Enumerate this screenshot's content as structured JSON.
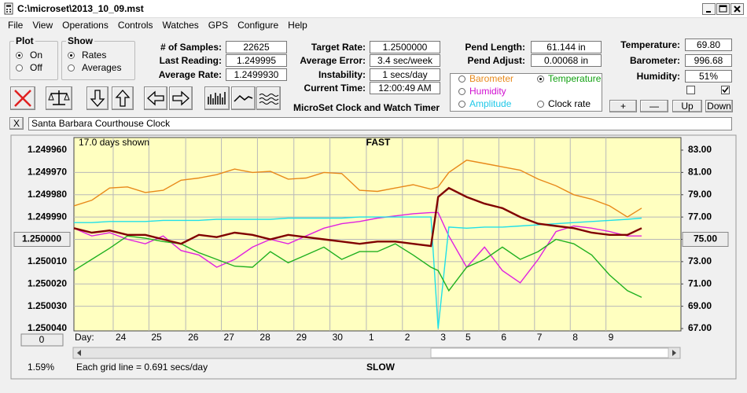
{
  "window": {
    "title": "C:\\microset\\2013_10_09.mst"
  },
  "menu": [
    "File",
    "View",
    "Operations",
    "Controls",
    "Watches",
    "GPS",
    "Configure",
    "Help"
  ],
  "plot": {
    "label": "Plot",
    "options": [
      "On",
      "Off"
    ],
    "selected": 0
  },
  "show": {
    "label": "Show",
    "options": [
      "Rates",
      "Averages"
    ],
    "selected": 0
  },
  "field_groups": [
    [
      {
        "label": "# of Samples:",
        "value": "22625"
      },
      {
        "label": "Last Reading:",
        "value": "1.249995"
      },
      {
        "label": "Average Rate:",
        "value": "1.2499930"
      }
    ],
    [
      {
        "label": "Target Rate:",
        "value": "1.2500000"
      },
      {
        "label": "Average Error:",
        "value": "3.4 sec/week"
      },
      {
        "label": "Instability:",
        "value": "1 secs/day"
      },
      {
        "label": "Current Time:",
        "value": "12:00:49 AM"
      }
    ],
    [
      {
        "label": "Pend Length:",
        "value": "61.144 in"
      },
      {
        "label": "Pend Adjust:",
        "value": "0.00068 in"
      }
    ],
    [
      {
        "label": "Temperature:",
        "value": "69.80"
      },
      {
        "label": "Barometer:",
        "value": "996.68"
      },
      {
        "label": "Humidity:",
        "value": "51%"
      }
    ]
  ],
  "checkboxes": [
    false,
    true
  ],
  "buttons": [
    "+",
    "—",
    "Up",
    "Down"
  ],
  "app_name": "MicroSet Clock and Watch Timer",
  "watch": {
    "close": "X",
    "name": "Santa Barbara Courthouse Clock"
  },
  "chart_data": {
    "type": "line",
    "days_shown": "17.0 days shown",
    "top_label": "FAST",
    "bottom_label": "SLOW",
    "x_label": "Day:",
    "scroll_value": "0",
    "status": "1.59%",
    "footnote": "Each grid line = 0.691 secs/day",
    "grid": true,
    "xlim": [
      0,
      17
    ],
    "xticks": [
      {
        "value": 1.1,
        "label": "24"
      },
      {
        "value": 2.1,
        "label": "25"
      },
      {
        "value": 3.13,
        "label": "26"
      },
      {
        "value": 4.13,
        "label": "27"
      },
      {
        "value": 5.14,
        "label": "28"
      },
      {
        "value": 6.16,
        "label": "29"
      },
      {
        "value": 7.17,
        "label": "30"
      },
      {
        "value": 8.19,
        "label": "1"
      },
      {
        "value": 9.2,
        "label": "2"
      },
      {
        "value": 10.2,
        "label": "3"
      },
      {
        "value": 10.9,
        "label": "5"
      },
      {
        "value": 11.9,
        "label": "6"
      },
      {
        "value": 12.9,
        "label": "7"
      },
      {
        "value": 13.9,
        "label": "8"
      },
      {
        "value": 14.9,
        "label": "9"
      }
    ],
    "ylim": [
      1.25004,
      1.24996
    ],
    "yticks": [
      {
        "value": 1.24996,
        "label": "1.249960"
      },
      {
        "value": 1.24997,
        "label": "1.249970"
      },
      {
        "value": 1.24998,
        "label": "1.249980"
      },
      {
        "value": 1.24999,
        "label": "1.249990"
      },
      {
        "value": 1.25,
        "label": "1.250000"
      },
      {
        "value": 1.25001,
        "label": "1.250010"
      },
      {
        "value": 1.25002,
        "label": "1.250020"
      },
      {
        "value": 1.25003,
        "label": "1.250030"
      },
      {
        "value": 1.25004,
        "label": "1.250040"
      }
    ],
    "y2lim": [
      67,
      83
    ],
    "y2ticks": [
      {
        "value": 83,
        "label": "83.00"
      },
      {
        "value": 81,
        "label": "81.00"
      },
      {
        "value": 79,
        "label": "79.00"
      },
      {
        "value": 77,
        "label": "77.00"
      },
      {
        "value": 75,
        "label": "75.00"
      },
      {
        "value": 73,
        "label": "73.00"
      },
      {
        "value": 71,
        "label": "71.00"
      },
      {
        "value": 69,
        "label": "69.00"
      },
      {
        "value": 67,
        "label": "67.00"
      }
    ],
    "x": [
      0,
      0.5,
      1,
      1.5,
      2,
      2.5,
      3,
      3.5,
      4,
      4.5,
      5,
      5.5,
      6,
      6.5,
      7,
      7.5,
      8,
      8.5,
      9,
      9.5,
      10,
      10.2,
      10.5,
      11,
      11.5,
      12,
      12.5,
      13,
      13.5,
      14,
      14.5,
      15,
      15.5,
      15.9
    ],
    "series": [
      {
        "name": "Barometer",
        "color": "#e8891a",
        "label_color": "#e8891a",
        "axis": "y2",
        "selected": false,
        "values": [
          78.0,
          78.5,
          79.6,
          79.7,
          79.2,
          79.4,
          80.3,
          80.5,
          80.8,
          81.3,
          81.0,
          81.1,
          80.4,
          80.5,
          81.0,
          80.9,
          79.4,
          79.3,
          79.6,
          79.9,
          79.5,
          79.7,
          81.0,
          82.1,
          81.8,
          81.5,
          81.2,
          80.4,
          79.8,
          79.0,
          78.6,
          78.0,
          77.0,
          77.8
        ]
      },
      {
        "name": "Humidity",
        "color": "#e020e0",
        "label_color": "#d010d0",
        "axis": "y2",
        "selected": false,
        "values": [
          76.0,
          75.3,
          75.6,
          75.0,
          74.6,
          75.3,
          74.0,
          73.6,
          72.5,
          73.2,
          74.3,
          75.0,
          74.6,
          75.3,
          76.0,
          76.4,
          76.6,
          76.9,
          77.1,
          77.3,
          77.4,
          77.4,
          75.3,
          72.5,
          74.3,
          72.2,
          71.1,
          73.2,
          75.7,
          76.2,
          76.0,
          75.7,
          75.3,
          75.3
        ]
      },
      {
        "name": "Amplitude",
        "color": "#20e0e8",
        "label_color": "#20c8e8",
        "axis": "y2",
        "selected": false,
        "values": [
          76.5,
          76.5,
          76.6,
          76.6,
          76.6,
          76.7,
          76.7,
          76.7,
          76.8,
          76.8,
          76.8,
          76.8,
          76.9,
          76.9,
          76.9,
          76.9,
          77.0,
          77.0,
          77.0,
          77.0,
          77.0,
          67.0,
          76.1,
          76.0,
          76.1,
          76.1,
          76.2,
          76.3,
          76.4,
          76.5,
          76.6,
          76.7,
          76.8,
          76.9
        ]
      },
      {
        "name": "Temperature",
        "color": "#20b020",
        "label_color": "#10a010",
        "axis": "y2",
        "selected": true,
        "values": [
          72.2,
          73.2,
          74.2,
          75.3,
          75.1,
          74.8,
          74.6,
          73.8,
          73.2,
          72.6,
          72.5,
          73.9,
          72.9,
          73.6,
          74.3,
          73.2,
          73.9,
          73.9,
          74.6,
          73.6,
          72.5,
          72.2,
          70.4,
          72.5,
          73.2,
          74.3,
          73.2,
          73.9,
          75.0,
          74.6,
          73.6,
          71.8,
          70.4,
          69.8
        ]
      },
      {
        "name": "Clock rate",
        "color": "#800000",
        "label_color": "#000000",
        "axis": "y",
        "selected": false,
        "values": [
          1.249995,
          1.249997,
          1.249996,
          1.249998,
          1.249998,
          1.25,
          1.250002,
          1.249998,
          1.249999,
          1.249997,
          1.249998,
          1.25,
          1.249998,
          1.249999,
          1.25,
          1.250001,
          1.250002,
          1.250001,
          1.250001,
          1.250002,
          1.250003,
          1.249981,
          1.249977,
          1.249981,
          1.249984,
          1.249986,
          1.24999,
          1.249993,
          1.249994,
          1.249995,
          1.249997,
          1.249998,
          1.249998,
          1.249995
        ]
      }
    ]
  }
}
